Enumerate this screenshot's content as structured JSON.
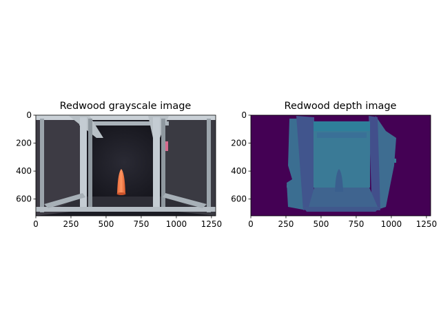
{
  "figure": {
    "panels": [
      {
        "title": "Redwood grayscale image",
        "image": "photo of aluminum frame rig with orange cone on dark floor",
        "xticks": [
          0,
          250,
          500,
          750,
          1000,
          1250
        ],
        "yticks": [
          0,
          200,
          400,
          600
        ],
        "xlim": [
          0,
          1280
        ],
        "ylim": [
          720,
          0
        ]
      },
      {
        "title": "Redwood depth image",
        "image": "viridis depth map of the same rig and cone",
        "xticks": [
          0,
          250,
          500,
          750,
          1000,
          1250
        ],
        "yticks": [
          0,
          200,
          400,
          600
        ],
        "xlim": [
          0,
          1280
        ],
        "ylim": [
          720,
          0
        ]
      }
    ]
  }
}
